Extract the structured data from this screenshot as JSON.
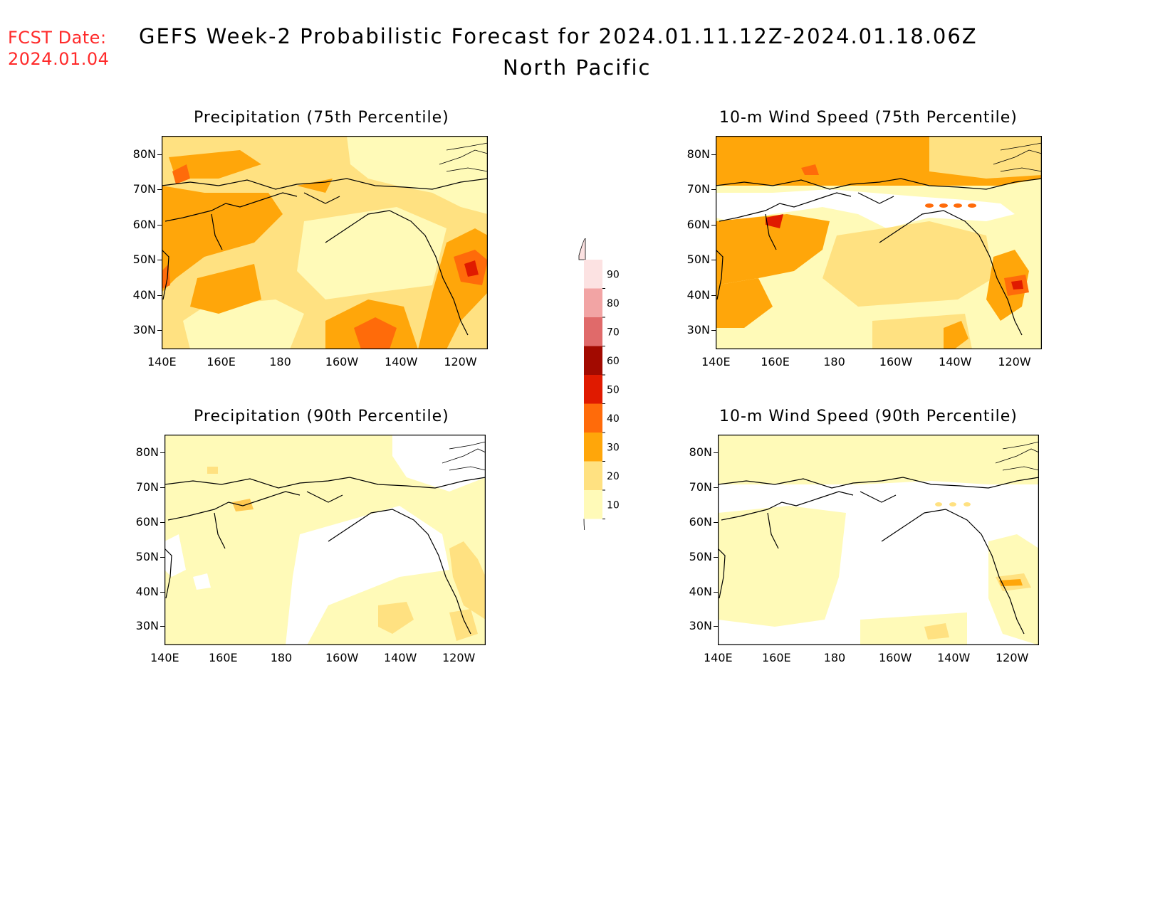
{
  "forecast_date": {
    "label": "FCST Date:",
    "value": "2024.01.04"
  },
  "title": "GEFS Week-2 Probabilistic Forecast for 2024.01.11.12Z-2024.01.18.06Z",
  "subtitle": "North Pacific",
  "colors": {
    "c10": "#fffab8",
    "c20": "#ffe181",
    "c30": "#ffa60a",
    "c40": "#ff6b0a",
    "c50": "#e01a00",
    "c60": "#a20a00",
    "c70": "#e06a6a",
    "c80": "#f2a4a4",
    "c90": "#fce2e2",
    "land": "#ffffff",
    "coast": "#000000",
    "title_red": "#ff2a2a"
  },
  "axes": {
    "lon_labels": [
      "140E",
      "160E",
      "180",
      "160W",
      "140W",
      "120W"
    ],
    "lat_labels": [
      "80N",
      "70N",
      "60N",
      "50N",
      "40N",
      "30N"
    ]
  },
  "colorbar": {
    "levels": [
      "90",
      "80",
      "70",
      "60",
      "50",
      "40",
      "30",
      "20",
      "10"
    ]
  },
  "panels": [
    {
      "title": "Precipitation (75th Percentile)"
    },
    {
      "title": "10-m Wind Speed (75th Percentile)"
    },
    {
      "title": "Precipitation (90th Percentile)"
    },
    {
      "title": "10-m Wind Speed (90th Percentile)"
    }
  ]
}
